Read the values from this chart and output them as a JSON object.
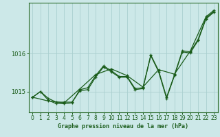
{
  "xlabel": "Graphe pression niveau de la mer (hPa)",
  "xlim": [
    -0.5,
    23.5
  ],
  "ylim": [
    1014.45,
    1017.35
  ],
  "yticks": [
    1015,
    1016
  ],
  "xticks": [
    0,
    1,
    2,
    3,
    4,
    5,
    6,
    7,
    8,
    9,
    10,
    11,
    12,
    13,
    14,
    15,
    16,
    17,
    18,
    19,
    20,
    21,
    22,
    23
  ],
  "bg_color": "#cce8e8",
  "grid_color": "#aacfcf",
  "line_color": "#1a5c1a",
  "series1": [
    [
      0,
      1014.85
    ],
    [
      1,
      1015.0
    ],
    [
      2,
      1014.82
    ],
    [
      3,
      1014.72
    ],
    [
      4,
      1014.72
    ],
    [
      5,
      1014.72
    ],
    [
      6,
      1015.02
    ],
    [
      7,
      1015.05
    ],
    [
      8,
      1015.38
    ],
    [
      9,
      1015.65
    ],
    [
      10,
      1015.52
    ],
    [
      11,
      1015.38
    ],
    [
      12,
      1015.38
    ],
    [
      13,
      1015.05
    ],
    [
      14,
      1015.08
    ],
    [
      15,
      1015.95
    ],
    [
      16,
      1015.52
    ],
    [
      17,
      1014.82
    ],
    [
      18,
      1015.42
    ],
    [
      19,
      1016.05
    ],
    [
      20,
      1016.02
    ],
    [
      21,
      1016.35
    ],
    [
      22,
      1016.92
    ],
    [
      23,
      1017.1
    ]
  ],
  "series2": [
    [
      0,
      1014.85
    ],
    [
      1,
      1015.0
    ],
    [
      2,
      1014.77
    ],
    [
      3,
      1014.68
    ],
    [
      4,
      1014.68
    ],
    [
      5,
      1014.7
    ],
    [
      6,
      1015.05
    ],
    [
      7,
      1015.1
    ],
    [
      8,
      1015.42
    ],
    [
      9,
      1015.68
    ],
    [
      10,
      1015.55
    ],
    [
      11,
      1015.4
    ],
    [
      12,
      1015.4
    ],
    [
      13,
      1015.08
    ],
    [
      14,
      1015.1
    ],
    [
      15,
      1015.97
    ],
    [
      16,
      1015.55
    ],
    [
      17,
      1014.85
    ],
    [
      18,
      1015.44
    ],
    [
      19,
      1016.08
    ],
    [
      20,
      1016.05
    ],
    [
      21,
      1016.38
    ],
    [
      22,
      1016.95
    ],
    [
      23,
      1017.12
    ]
  ],
  "series3": [
    [
      0,
      1014.85
    ],
    [
      2,
      1014.75
    ],
    [
      4,
      1014.7
    ],
    [
      6,
      1015.07
    ],
    [
      8,
      1015.45
    ],
    [
      10,
      1015.6
    ],
    [
      12,
      1015.42
    ],
    [
      14,
      1015.12
    ],
    [
      16,
      1015.58
    ],
    [
      18,
      1015.46
    ],
    [
      20,
      1016.07
    ],
    [
      22,
      1016.98
    ],
    [
      23,
      1017.15
    ]
  ]
}
